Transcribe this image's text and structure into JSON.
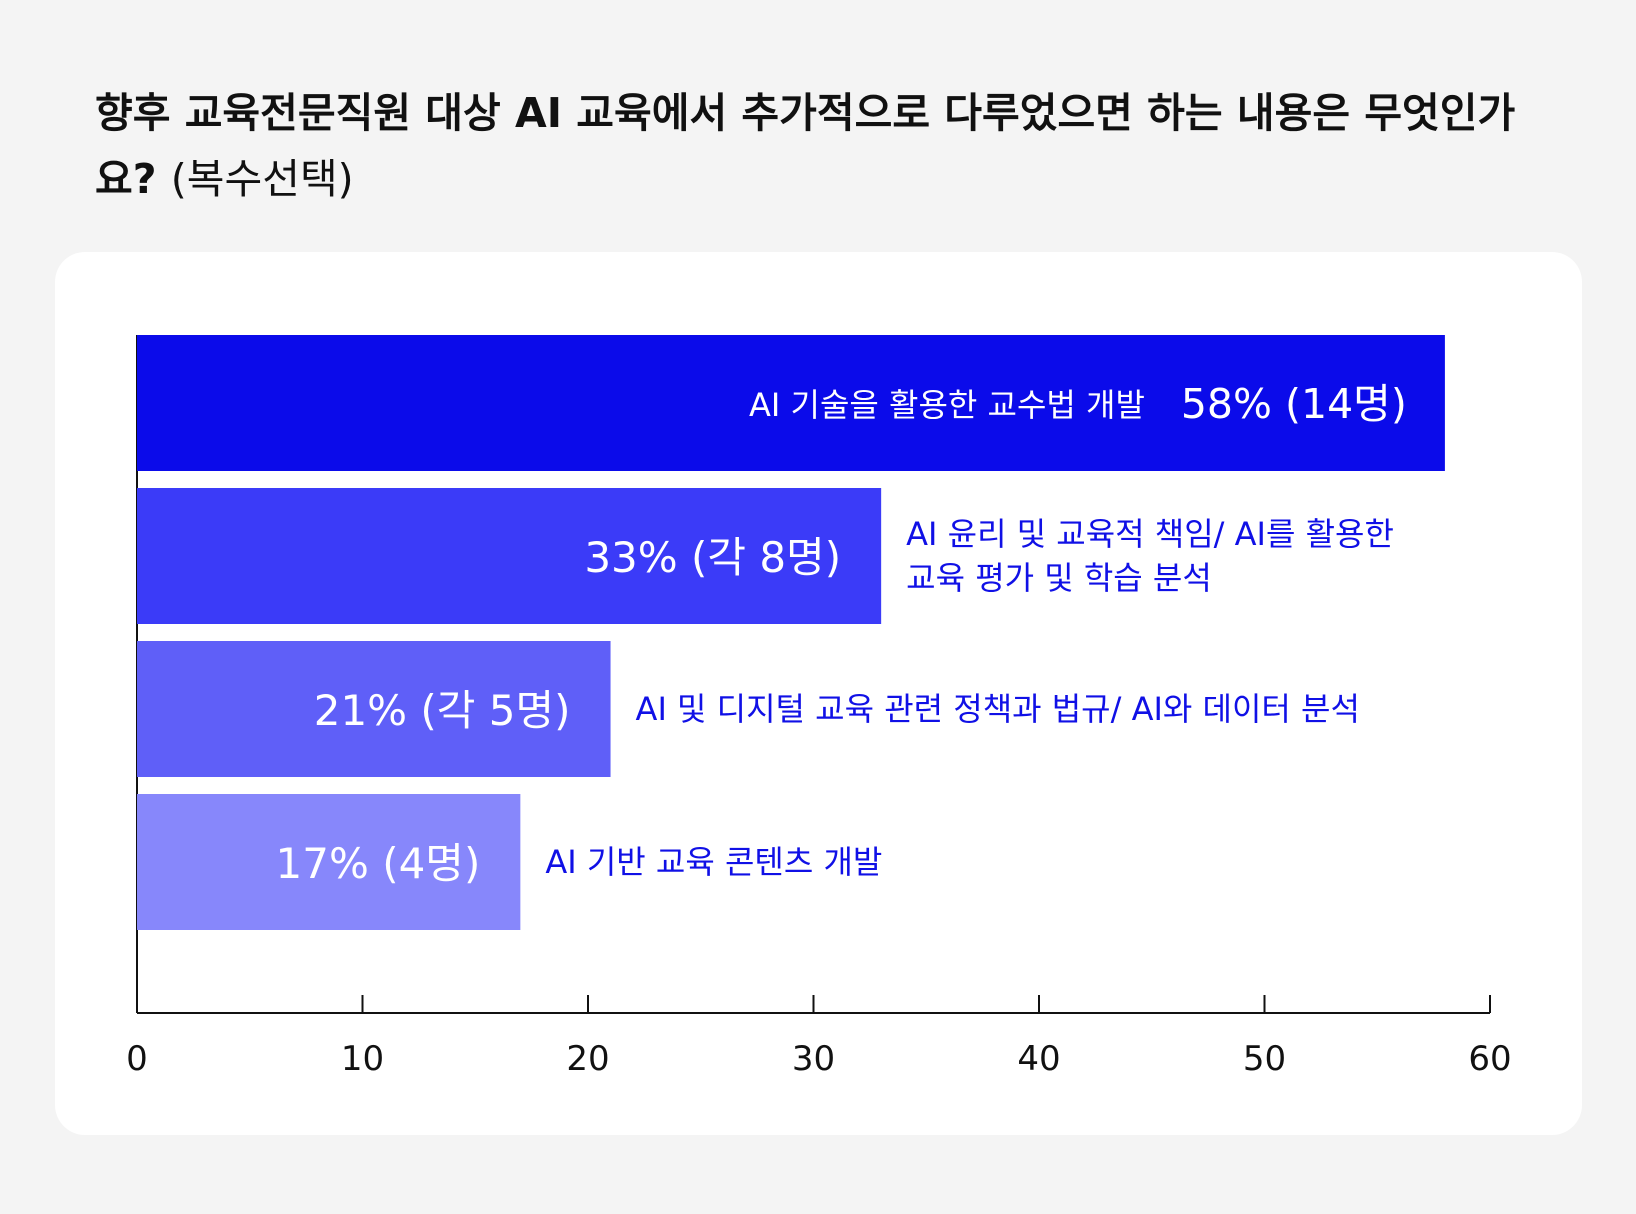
{
  "title": {
    "main": "향후 교육전문직원 대상 AI 교육에서 추가적으로 다루었으면 하는 내용은 무엇인가요?",
    "sub": "(복수선택)"
  },
  "chart_data": {
    "type": "bar",
    "orientation": "horizontal",
    "xlim": [
      0,
      60
    ],
    "xticks": [
      0,
      10,
      20,
      30,
      40,
      50,
      60
    ],
    "grid": false,
    "bars": [
      {
        "value": 58,
        "value_label": "58% (14명)",
        "label_lines": [
          "AI 기술을 활용한 교수법 개발"
        ],
        "color": "#0b0bea"
      },
      {
        "value": 33,
        "value_label": "33% (각 8명)",
        "label_lines": [
          "AI 윤리 및 교육적 책임/ AI를 활용한",
          "교육 평가 및 학습 분석"
        ],
        "color": "#3b3bf8"
      },
      {
        "value": 21,
        "value_label": "21% (각 5명)",
        "label_lines": [
          "AI 및 디지털 교육 관련 정책과 법규/ AI와 데이터 분석"
        ],
        "color": "#5f5ff8"
      },
      {
        "value": 17,
        "value_label": "17% (4명)",
        "label_lines": [
          "AI 기반 교육 콘텐츠 개발"
        ],
        "color": "#8787fb"
      }
    ],
    "category_label_color": "#1010e6",
    "value_label_color": "#ffffff"
  }
}
